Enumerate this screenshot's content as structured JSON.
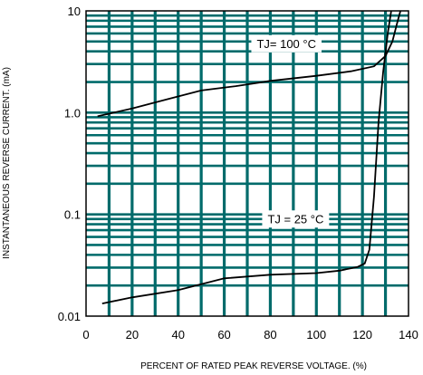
{
  "chart_data": {
    "type": "line",
    "title": "",
    "xlabel": "PERCENT OF RATED PEAK REVERSE VOLTAGE. (%)",
    "ylabel": "INSTANTANEOUS REVERSE CURRENT. (mA)",
    "xlim": [
      0,
      140
    ],
    "ylim": [
      0.01,
      10
    ],
    "yscale": "log",
    "x_ticks": [
      0,
      20,
      40,
      60,
      80,
      100,
      120,
      140
    ],
    "y_ticks": [
      {
        "value": 0.01,
        "label": "0.01"
      },
      {
        "value": 0.1,
        "label": "0.1"
      },
      {
        "value": 1,
        "label": "1.0"
      },
      {
        "value": 10,
        "label": "10"
      }
    ],
    "grid": true,
    "colors": {
      "grid": "#006b6b",
      "curve": "#000000",
      "annotation_bg": "#ffffff"
    },
    "series": [
      {
        "name": "TJ= 100 °C",
        "points": [
          [
            5,
            0.92
          ],
          [
            20,
            1.1
          ],
          [
            35,
            1.35
          ],
          [
            50,
            1.65
          ],
          [
            65,
            1.82
          ],
          [
            80,
            2.05
          ],
          [
            100,
            2.3
          ],
          [
            115,
            2.55
          ],
          [
            125,
            2.85
          ],
          [
            130,
            3.6
          ],
          [
            133,
            5
          ],
          [
            135,
            7.5
          ],
          [
            136.5,
            10
          ]
        ]
      },
      {
        "name": "TJ = 25 °C",
        "points": [
          [
            7,
            0.0133
          ],
          [
            20,
            0.0153
          ],
          [
            40,
            0.018
          ],
          [
            60,
            0.0235
          ],
          [
            80,
            0.0255
          ],
          [
            100,
            0.0265
          ],
          [
            110,
            0.028
          ],
          [
            118,
            0.0305
          ],
          [
            121,
            0.033
          ],
          [
            123,
            0.045
          ],
          [
            125,
            0.15
          ],
          [
            127,
            0.8
          ],
          [
            129,
            2.5
          ],
          [
            131,
            6
          ],
          [
            132.5,
            10
          ]
        ]
      }
    ],
    "annotations": [
      {
        "text": "TJ= 100 °C",
        "at": [
          87,
          4.8
        ]
      },
      {
        "text": "TJ = 25 °C",
        "at": [
          91,
          0.091
        ]
      }
    ]
  }
}
